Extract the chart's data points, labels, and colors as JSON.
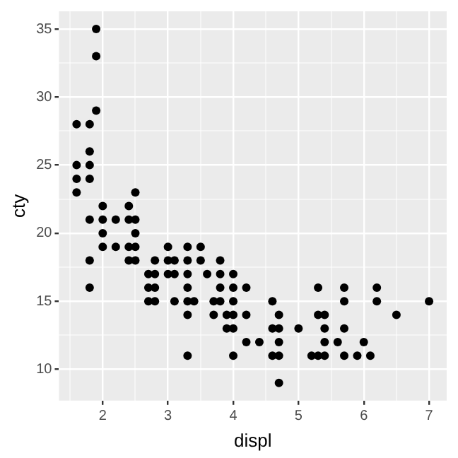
{
  "chart_data": {
    "type": "scatter",
    "xlabel": "displ",
    "ylabel": "cty",
    "color": "#000000",
    "marker": "circle",
    "grid": true,
    "legend": false,
    "x": [
      1.6,
      1.6,
      1.6,
      1.6,
      1.8,
      1.8,
      1.8,
      1.8,
      1.8,
      1.8,
      1.8,
      1.9,
      1.9,
      1.9,
      2.0,
      2.0,
      2.0,
      2.0,
      2.2,
      2.2,
      2.4,
      2.4,
      2.4,
      2.4,
      2.5,
      2.5,
      2.5,
      2.5,
      2.5,
      2.7,
      2.7,
      2.7,
      2.8,
      2.8,
      2.8,
      2.8,
      3.0,
      3.0,
      3.0,
      3.1,
      3.1,
      3.1,
      3.3,
      3.3,
      3.3,
      3.3,
      3.3,
      3.3,
      3.3,
      3.4,
      3.5,
      3.5,
      3.6,
      3.7,
      3.7,
      3.8,
      3.8,
      3.8,
      3.8,
      3.9,
      3.9,
      4.0,
      4.0,
      4.0,
      4.0,
      4.0,
      4.0,
      4.2,
      4.2,
      4.2,
      4.4,
      4.6,
      4.6,
      4.6,
      4.7,
      4.7,
      4.7,
      4.7,
      4.7,
      5.0,
      5.2,
      5.3,
      5.3,
      5.3,
      5.4,
      5.4,
      5.4,
      5.4,
      5.6,
      5.7,
      5.7,
      5.7,
      5.7,
      5.9,
      6.0,
      6.1,
      6.2,
      6.2,
      6.5,
      7.0
    ],
    "values": [
      23,
      24,
      25,
      28,
      16,
      18,
      21,
      24,
      25,
      26,
      28,
      29,
      33,
      35,
      19,
      20,
      21,
      22,
      19,
      21,
      18,
      19,
      21,
      22,
      18,
      19,
      20,
      21,
      23,
      15,
      16,
      17,
      15,
      16,
      17,
      18,
      17,
      18,
      19,
      15,
      17,
      18,
      11,
      14,
      15,
      16,
      17,
      18,
      19,
      15,
      18,
      19,
      17,
      14,
      15,
      15,
      16,
      17,
      18,
      13,
      14,
      11,
      13,
      14,
      15,
      16,
      17,
      12,
      14,
      16,
      12,
      11,
      13,
      15,
      9,
      11,
      12,
      13,
      14,
      13,
      11,
      11,
      14,
      16,
      11,
      12,
      13,
      14,
      12,
      11,
      13,
      15,
      16,
      11,
      12,
      11,
      15,
      16,
      14,
      15
    ],
    "xlim": [
      1.33,
      7.27
    ],
    "ylim": [
      7.7,
      36.3
    ],
    "xticks": [
      {
        "value": 1.5,
        "label": null
      },
      2,
      {
        "value": 2.5,
        "label": null
      },
      3,
      {
        "value": 3.5,
        "label": null
      },
      4,
      {
        "value": 4.5,
        "label": null
      },
      5,
      {
        "value": 5.5,
        "label": null
      },
      6,
      {
        "value": 6.5,
        "label": null
      },
      7
    ],
    "yticks": [
      10,
      {
        "value": 12.5,
        "label": null
      },
      15,
      {
        "value": 17.5,
        "label": null
      },
      20,
      {
        "value": 22.5,
        "label": null
      },
      25,
      {
        "value": 27.5,
        "label": null
      },
      30,
      {
        "value": 32.5,
        "label": null
      },
      35
    ]
  }
}
